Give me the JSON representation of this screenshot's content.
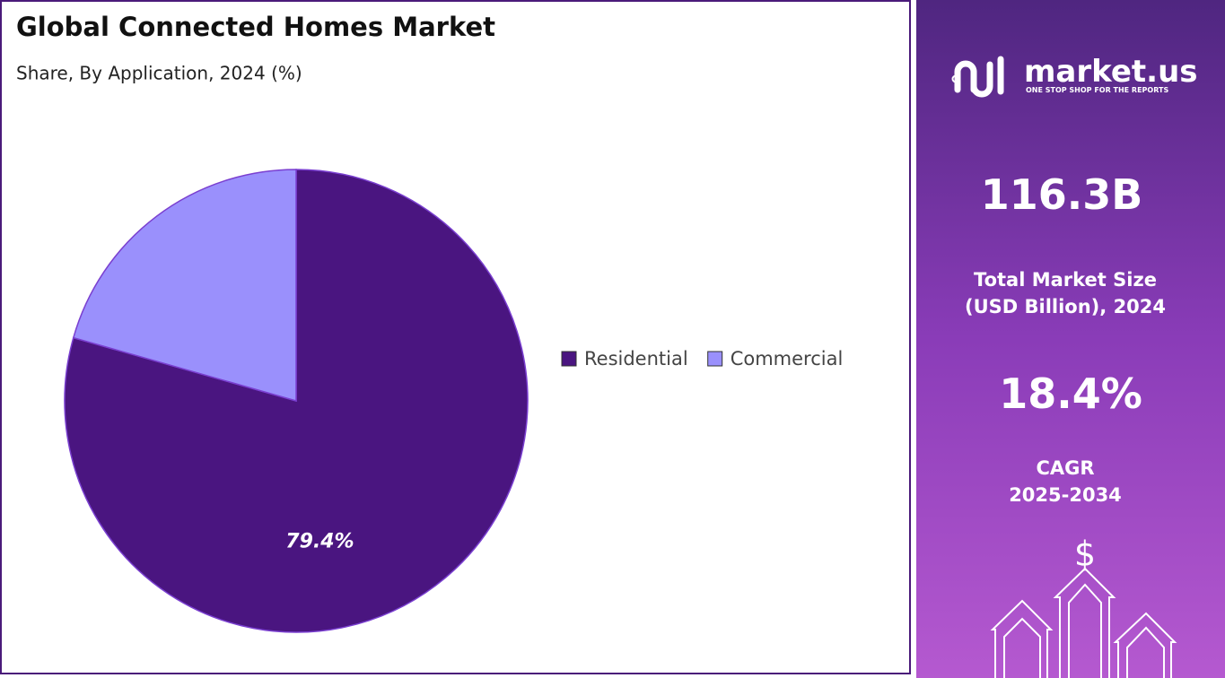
{
  "chart_data": {
    "type": "pie",
    "title": "Global Connected Homes Market",
    "subtitle": "Share, By Application, 2024 (%)",
    "categories": [
      "Residential",
      "Commercial"
    ],
    "values": [
      79.4,
      20.6
    ],
    "value_labels": [
      "79.4%",
      null
    ],
    "colors": [
      "#4a1580",
      "#9a90fc"
    ],
    "legend": "right"
  },
  "side_panel": {
    "brand": "market.us",
    "tagline": "ONE STOP SHOP FOR THE REPORTS",
    "market_size": "116.3B",
    "market_size_label_1": "Total Market Size",
    "market_size_label_2": "(USD Billion), 2024",
    "cagr": "18.4%",
    "cagr_label_1": "CAGR",
    "cagr_label_2": "2025-2034",
    "icon_symbol": "$"
  }
}
